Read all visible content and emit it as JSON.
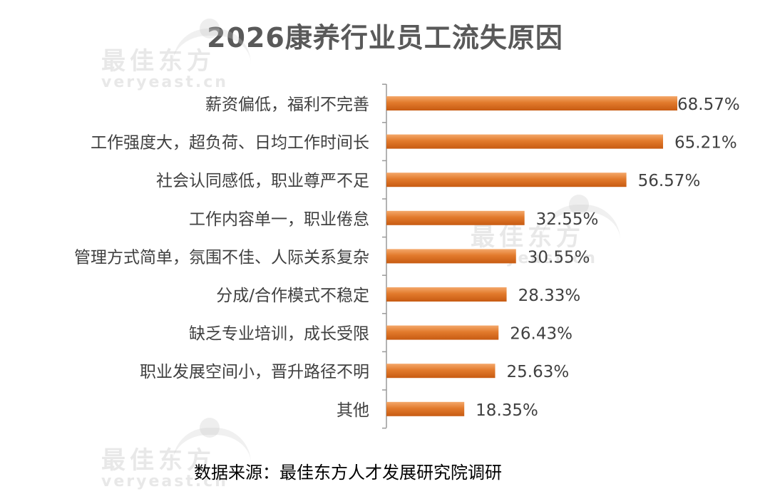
{
  "title": "2026康养行业员工流失原因",
  "watermark": {
    "cn": "最佳东方",
    "en": "veryeast.cn"
  },
  "source": "数据来源：最佳东方人才发展研究院调研",
  "colors": {
    "bar_dark": "#c75b12",
    "bar_light": "#f4a86a",
    "axis": "#9a9a9a",
    "label": "#404040"
  },
  "chart_data": {
    "type": "bar",
    "orientation": "horizontal",
    "categories": [
      "薪资偏低，福利不完善",
      "工作强度大，超负荷、日均工作时间长",
      "社会认同感低，职业尊严不足",
      "工作内容单一，职业倦怠",
      "管理方式简单，氛围不佳、人际关系复杂",
      "分成/合作模式不稳定",
      "缺乏专业培训，成长受限",
      "职业发展空间小，晋升路径不明",
      "其他"
    ],
    "values": [
      68.57,
      65.21,
      56.57,
      32.55,
      30.55,
      28.33,
      26.43,
      25.63,
      18.35
    ],
    "value_labels": [
      "68.57%",
      "65.21%",
      "56.57%",
      "32.55%",
      "30.55%",
      "28.33%",
      "26.43%",
      "25.63%",
      "18.35%"
    ],
    "xlim": [
      0,
      68.57
    ],
    "grid": false,
    "legend": "none"
  }
}
